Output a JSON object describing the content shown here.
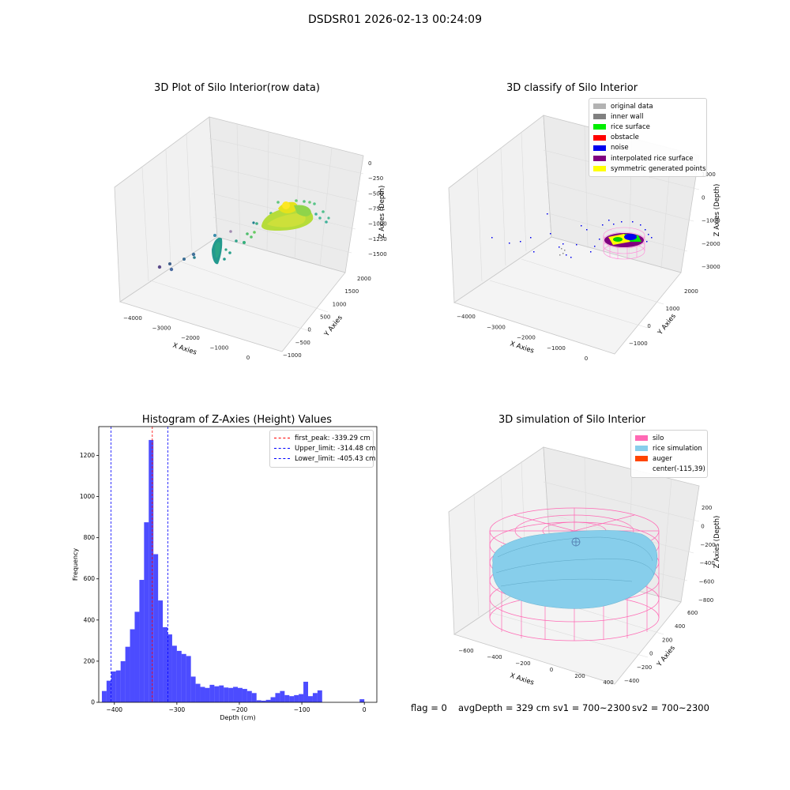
{
  "figure": {
    "suptitle": "DSDSR01 2026-02-13 00:24:09"
  },
  "panel1": {
    "title": "3D Plot of Silo Interior(row data)",
    "xlabel": "X Axies",
    "ylabel": "Y Axies",
    "zlabel": "Z Axies (Depth)",
    "xticks": [
      "−4000",
      "−3000",
      "−2000",
      "−1000",
      "0"
    ],
    "yticks": [
      "−1000",
      "−500",
      "0",
      "500",
      "1000",
      "1500",
      "2000"
    ],
    "zticks": [
      "0",
      "−250",
      "−500",
      "−750",
      "−1000",
      "−1250",
      "−1500"
    ]
  },
  "panel2": {
    "title": "3D classify of Silo Interior",
    "xlabel": "X Axies",
    "ylabel": "Y Axies",
    "zlabel": "Z Axies (Depth)",
    "xticks": [
      "−4000",
      "−3000",
      "−2000",
      "−1000",
      "0"
    ],
    "yticks": [
      "−1000",
      "0",
      "1000",
      "2000"
    ],
    "zticks": [
      "1000",
      "0",
      "−1000",
      "−2000",
      "−3000"
    ],
    "legend": [
      {
        "label": "original data",
        "color": "#b3b3b3"
      },
      {
        "label": "inner wall",
        "color": "#808080"
      },
      {
        "label": "rice surface",
        "color": "#00ee00"
      },
      {
        "label": "obstacle",
        "color": "#ff0000"
      },
      {
        "label": "noise",
        "color": "#0000ee"
      },
      {
        "label": "interpolated rice surface",
        "color": "#800080"
      },
      {
        "label": "symmetric generated points",
        "color": "#ffff00"
      }
    ]
  },
  "panel3": {
    "title": "Histogram of Z-Axies (Height) Values",
    "legend": [
      {
        "label": "first_peak: -339.29 cm",
        "color": "#ff0000"
      },
      {
        "label": "Upper_limit: -314.48 cm",
        "color": "#0000ff"
      },
      {
        "label": "Lower_limit: -405.43 cm",
        "color": "#0000ff"
      }
    ]
  },
  "panel4": {
    "title": "3D simulation of Silo Interior",
    "xlabel": "X Axies",
    "ylabel": "Y Axies",
    "zlabel": "Z Axies (Depth)",
    "xticks": [
      "−600",
      "−400",
      "−200",
      "0",
      "200",
      "400"
    ],
    "yticks": [
      "−400",
      "−200",
      "0",
      "200",
      "400",
      "600"
    ],
    "zticks": [
      "200",
      "0",
      "−200",
      "−400",
      "−600",
      "−800"
    ],
    "legend": [
      {
        "label": "silo",
        "color": "#ff69b4"
      },
      {
        "label": "rice simulation",
        "color": "#87ceeb"
      },
      {
        "label": "auger",
        "color": "#ff4500"
      },
      {
        "label": "center(-115,39)",
        "color": ""
      }
    ]
  },
  "footer": {
    "flag": "flag = 0",
    "avg": "avgDepth = 329 cm",
    "sv1": "sv1 = 700~2300",
    "sv2": "sv2 = 700~2300"
  },
  "chart_data": {
    "type": "bar",
    "title": "Histogram of Z-Axies (Height) Values",
    "xlabel": "Depth (cm)",
    "ylabel": "Frequency",
    "xlim": [
      -425,
      20
    ],
    "ylim": [
      0,
      1340
    ],
    "xticks": [
      -400,
      -300,
      -200,
      -100,
      0
    ],
    "yticks": [
      0,
      200,
      400,
      600,
      800,
      1000,
      1200
    ],
    "bin_width": 7.5,
    "bins": [
      {
        "x": -420,
        "count": 55
      },
      {
        "x": -412.5,
        "count": 105
      },
      {
        "x": -405,
        "count": 150
      },
      {
        "x": -397.5,
        "count": 155
      },
      {
        "x": -390,
        "count": 200
      },
      {
        "x": -382.5,
        "count": 270
      },
      {
        "x": -375,
        "count": 355
      },
      {
        "x": -367.5,
        "count": 440
      },
      {
        "x": -360,
        "count": 595
      },
      {
        "x": -352.5,
        "count": 875
      },
      {
        "x": -345,
        "count": 1275
      },
      {
        "x": -337.5,
        "count": 720
      },
      {
        "x": -330,
        "count": 495
      },
      {
        "x": -322.5,
        "count": 365
      },
      {
        "x": -315,
        "count": 330
      },
      {
        "x": -307.5,
        "count": 275
      },
      {
        "x": -300,
        "count": 250
      },
      {
        "x": -292.5,
        "count": 235
      },
      {
        "x": -285,
        "count": 225
      },
      {
        "x": -277.5,
        "count": 125
      },
      {
        "x": -270,
        "count": 90
      },
      {
        "x": -262.5,
        "count": 75
      },
      {
        "x": -255,
        "count": 70
      },
      {
        "x": -247.5,
        "count": 85
      },
      {
        "x": -240,
        "count": 78
      },
      {
        "x": -232.5,
        "count": 82
      },
      {
        "x": -225,
        "count": 72
      },
      {
        "x": -217.5,
        "count": 70
      },
      {
        "x": -210,
        "count": 75
      },
      {
        "x": -202.5,
        "count": 70
      },
      {
        "x": -195,
        "count": 65
      },
      {
        "x": -187.5,
        "count": 55
      },
      {
        "x": -180,
        "count": 45
      },
      {
        "x": -172.5,
        "count": 10
      },
      {
        "x": -165,
        "count": 8
      },
      {
        "x": -157.5,
        "count": 12
      },
      {
        "x": -150,
        "count": 25
      },
      {
        "x": -142.5,
        "count": 45
      },
      {
        "x": -135,
        "count": 55
      },
      {
        "x": -127.5,
        "count": 35
      },
      {
        "x": -120,
        "count": 30
      },
      {
        "x": -112.5,
        "count": 35
      },
      {
        "x": -105,
        "count": 40
      },
      {
        "x": -97.5,
        "count": 100
      },
      {
        "x": -90,
        "count": 30
      },
      {
        "x": -82.5,
        "count": 45
      },
      {
        "x": -75,
        "count": 58
      },
      {
        "x": -7.5,
        "count": 15
      }
    ],
    "vlines": [
      {
        "name": "first_peak",
        "x": -339.29,
        "color": "#ff0000"
      },
      {
        "name": "Upper_limit",
        "x": -314.48,
        "color": "#0000ff"
      },
      {
        "name": "Lower_limit",
        "x": -405.43,
        "color": "#0000ff"
      }
    ],
    "bar_color": "#0000ff",
    "legend_position": "top-right"
  }
}
